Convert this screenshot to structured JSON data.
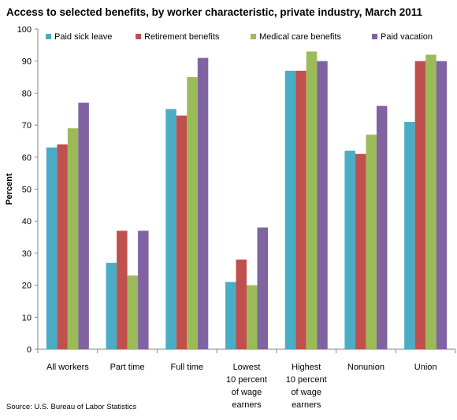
{
  "chart_data": {
    "type": "bar",
    "title": "Access to selected benefits, by worker characteristic, private industry, March 2011",
    "xlabel": "",
    "ylabel": "Percent",
    "ylim": [
      0,
      100
    ],
    "yticks": [
      0,
      10,
      20,
      30,
      40,
      50,
      60,
      70,
      80,
      90,
      100
    ],
    "grid": false,
    "legend_position": "top",
    "categories": [
      [
        "All workers"
      ],
      [
        "Part time"
      ],
      [
        "Full time"
      ],
      [
        "Lowest",
        "10 percent",
        "of wage",
        "earners"
      ],
      [
        "Highest",
        "10 percent",
        "of wage",
        "earners"
      ],
      [
        "Nonunion"
      ],
      [
        "Union"
      ]
    ],
    "series": [
      {
        "name": "Paid sick leave",
        "color": "#4bacc6",
        "values": [
          63,
          27,
          75,
          21,
          87,
          62,
          71
        ]
      },
      {
        "name": "Retirement benefits",
        "color": "#c0504d",
        "values": [
          64,
          37,
          73,
          28,
          87,
          61,
          90
        ]
      },
      {
        "name": "Medical care benefits",
        "color": "#9bbb59",
        "values": [
          69,
          23,
          85,
          20,
          93,
          67,
          92
        ]
      },
      {
        "name": "Paid vacation",
        "color": "#8064a2",
        "values": [
          77,
          37,
          91,
          38,
          90,
          76,
          90
        ]
      }
    ],
    "source": "Source: U.S. Bureau of Labor Statistics"
  }
}
